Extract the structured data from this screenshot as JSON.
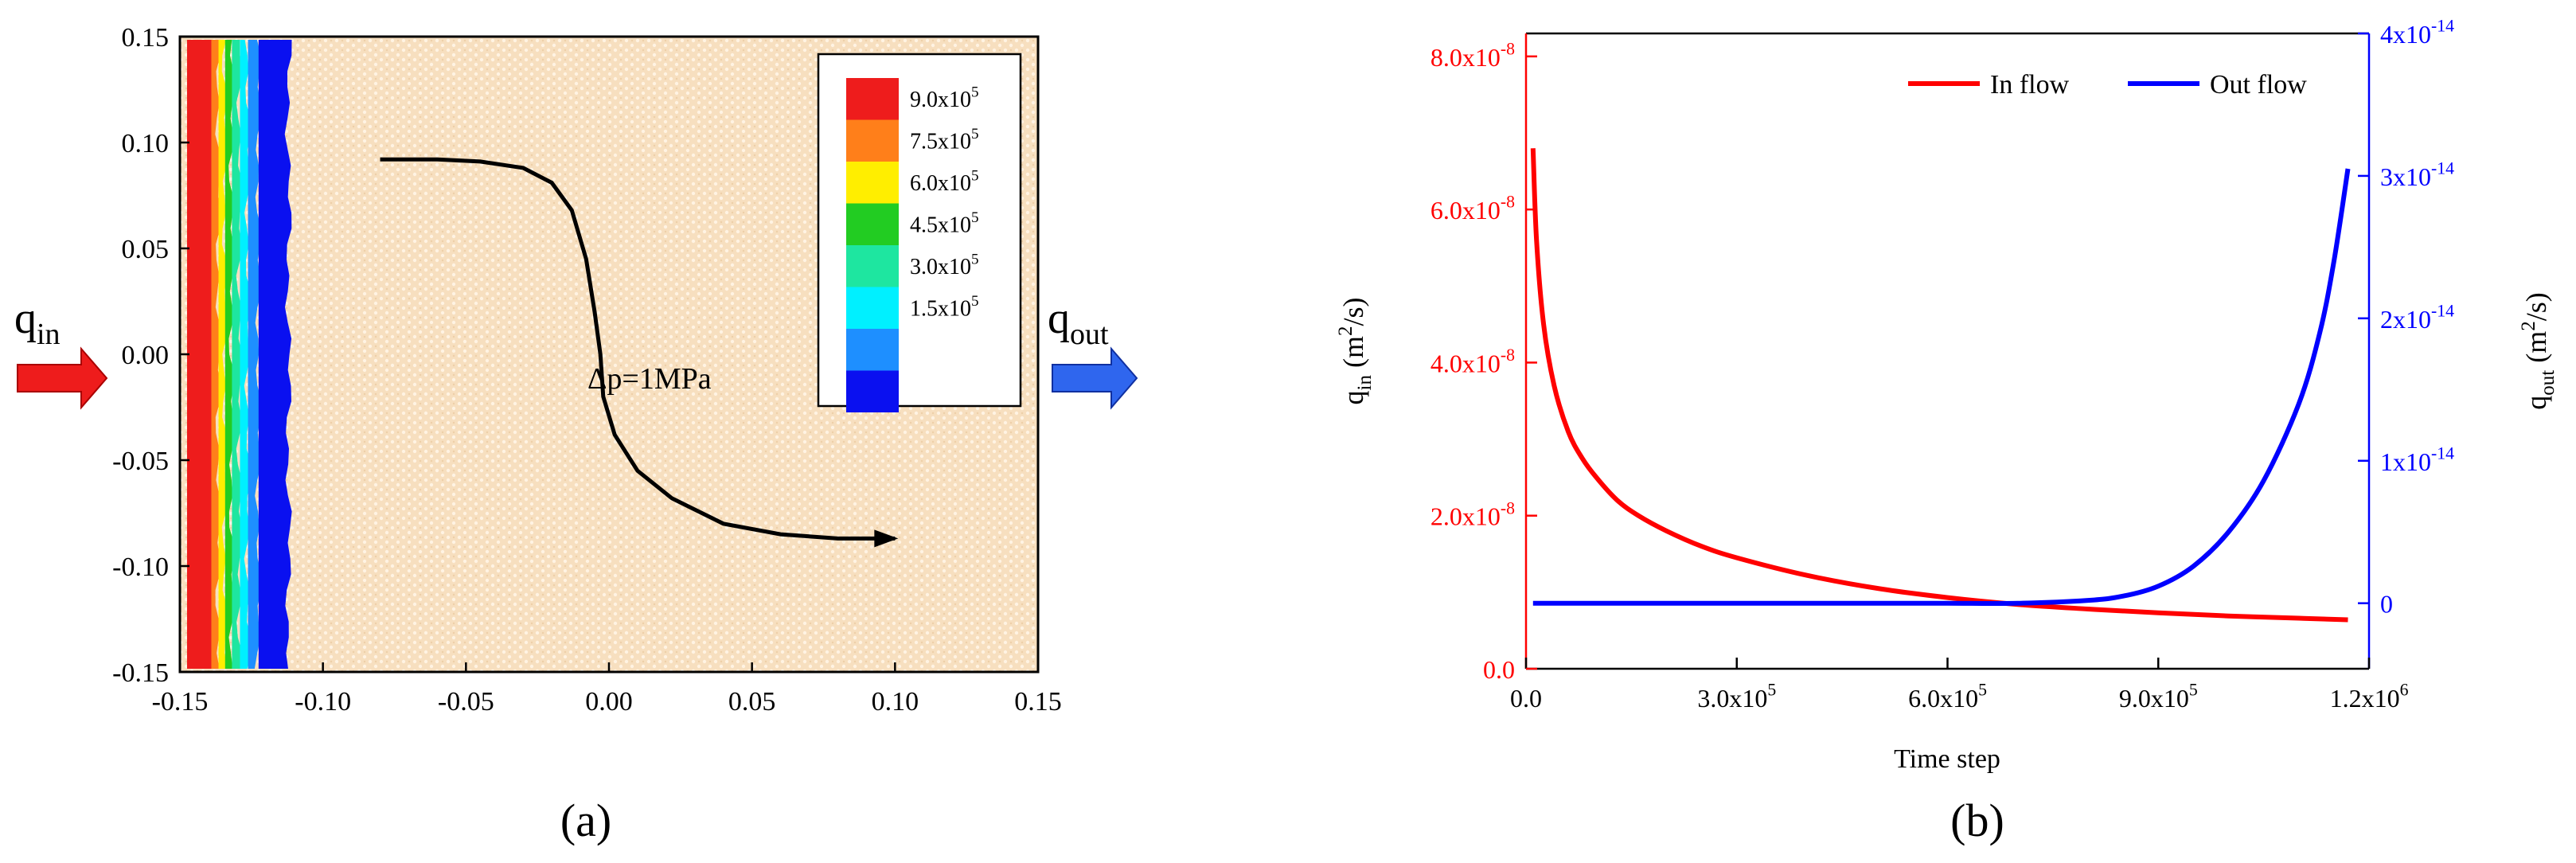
{
  "chart_data": [
    {
      "type": "contour",
      "panel_label": "(a)",
      "xlim": [
        -0.15,
        0.15
      ],
      "ylim": [
        -0.15,
        0.15
      ],
      "x_ticks": [
        "-0.15",
        "-0.10",
        "-0.05",
        "0.00",
        "0.05",
        "0.10",
        "0.15"
      ],
      "y_ticks": [
        "0.15",
        "0.10",
        "0.05",
        "0.00",
        "-0.05",
        "-0.10",
        "-0.15"
      ],
      "x_tick_values": [
        -0.15,
        -0.1,
        -0.05,
        0.0,
        0.05,
        0.1,
        0.15
      ],
      "y_tick_values": [
        0.15,
        0.1,
        0.05,
        0.0,
        -0.05,
        -0.1,
        -0.15
      ],
      "contour_bands": [
        {
          "x_from": -0.1475,
          "x_to": -0.139,
          "color": "#ee1c1c"
        },
        {
          "x_from": -0.139,
          "x_to": -0.1365,
          "color": "#ff7f1a"
        },
        {
          "x_from": -0.1365,
          "x_to": -0.1342,
          "color": "#ffee00"
        },
        {
          "x_from": -0.1342,
          "x_to": -0.1318,
          "color": "#22cc22"
        },
        {
          "x_from": -0.1318,
          "x_to": -0.129,
          "color": "#1ee6a0"
        },
        {
          "x_from": -0.129,
          "x_to": -0.1262,
          "color": "#00f0ff"
        },
        {
          "x_from": -0.1262,
          "x_to": -0.1225,
          "color": "#1e8fff"
        },
        {
          "x_from": -0.1225,
          "x_to": -0.112,
          "color": "#0a10f0"
        }
      ],
      "legend": [
        {
          "mantissa": "9.0x10",
          "exp": "5",
          "color": "#ee1c1c"
        },
        {
          "mantissa": "7.5x10",
          "exp": "5",
          "color": "#ff7f1a"
        },
        {
          "mantissa": "6.0x10",
          "exp": "5",
          "color": "#ffee00"
        },
        {
          "mantissa": "4.5x10",
          "exp": "5",
          "color": "#22cc22"
        },
        {
          "mantissa": "3.0x10",
          "exp": "5",
          "color": "#1ee6a0"
        },
        {
          "mantissa": "1.5x10",
          "exp": "5",
          "color": "#00f0ff"
        },
        {
          "mantissa": "",
          "exp": "",
          "color": "#1e8fff"
        },
        {
          "mantissa": "",
          "exp": "",
          "color": "#0a10f0"
        }
      ],
      "annotation": "Δp=1MPa",
      "arrow_path": [
        [
          -0.08,
          0.092
        ],
        [
          -0.06,
          0.092
        ],
        [
          -0.045,
          0.091
        ],
        [
          -0.03,
          0.088
        ],
        [
          -0.02,
          0.081
        ],
        [
          -0.013,
          0.068
        ],
        [
          -0.008,
          0.045
        ],
        [
          -0.005,
          0.02
        ],
        [
          -0.003,
          0.0
        ],
        [
          -0.002,
          -0.02
        ],
        [
          0.002,
          -0.038
        ],
        [
          0.01,
          -0.055
        ],
        [
          0.022,
          -0.068
        ],
        [
          0.04,
          -0.08
        ],
        [
          0.06,
          -0.085
        ],
        [
          0.08,
          -0.087
        ],
        [
          0.1,
          -0.087
        ]
      ],
      "inlet_label": {
        "main": "q",
        "sub": "in"
      },
      "outlet_label": {
        "main": "q",
        "sub": "out"
      },
      "colors": {
        "background": "#f7dfbf",
        "grain": "#fff3e3",
        "arrow_in": "#ee1c1c",
        "arrow_out": "#2f66ee",
        "curve": "#000000"
      }
    },
    {
      "type": "line",
      "panel_label": "(b)",
      "xlabel": "Time step",
      "x_ticks": [
        {
          "value": 0,
          "mantissa": "0.0",
          "exp": ""
        },
        {
          "value": 300000,
          "mantissa": "3.0x10",
          "exp": "5"
        },
        {
          "value": 600000,
          "mantissa": "6.0x10",
          "exp": "5"
        },
        {
          "value": 900000,
          "mantissa": "9.0x10",
          "exp": "5"
        },
        {
          "value": 1200000,
          "mantissa": "1.2x10",
          "exp": "6"
        }
      ],
      "xlim": [
        0,
        1200000
      ],
      "y_left": {
        "label_main": "q",
        "label_sub": "in",
        "label_unit": " (m",
        "label_sup": "2",
        "label_tail": "/s)",
        "color": "#ff0000",
        "lim": [
          0,
          8.3e-08
        ],
        "ticks": [
          {
            "value": 0,
            "mantissa": "0.0",
            "exp": ""
          },
          {
            "value": 2e-08,
            "mantissa": "2.0x10",
            "exp": "-8"
          },
          {
            "value": 4e-08,
            "mantissa": "4.0x10",
            "exp": "-8"
          },
          {
            "value": 6e-08,
            "mantissa": "6.0x10",
            "exp": "-8"
          },
          {
            "value": 8e-08,
            "mantissa": "8.0x10",
            "exp": "-8"
          }
        ]
      },
      "y_right": {
        "label_main": "q",
        "label_sub": "out",
        "label_unit": " (m",
        "label_sup": "2",
        "label_tail": "/s)",
        "color": "#0000ff",
        "lim": [
          -4.6e-15,
          4e-14
        ],
        "ticks": [
          {
            "value": 0,
            "mantissa": "0",
            "exp": ""
          },
          {
            "value": 1e-14,
            "mantissa": "1x10",
            "exp": "-14"
          },
          {
            "value": 2e-14,
            "mantissa": "2x10",
            "exp": "-14"
          },
          {
            "value": 3e-14,
            "mantissa": "3x10",
            "exp": "-14"
          },
          {
            "value": 4e-14,
            "mantissa": "4x10",
            "exp": "-14"
          }
        ]
      },
      "series": [
        {
          "name": "In flow",
          "axis": "left",
          "color": "#ff0000",
          "x": [
            10000,
            15000,
            25000,
            40000,
            60000,
            80000,
            100000,
            130000,
            160000,
            200000,
            250000,
            300000,
            400000,
            500000,
            600000,
            700000,
            800000,
            900000,
            1000000,
            1100000,
            1170000
          ],
          "y": [
            6.8e-08,
            5.6e-08,
            4.5e-08,
            3.7e-08,
            3.1e-08,
            2.75e-08,
            2.5e-08,
            2.2e-08,
            2e-08,
            1.8e-08,
            1.6e-08,
            1.45e-08,
            1.22e-08,
            1.05e-08,
            9.3e-09,
            8.4e-09,
            7.8e-09,
            7.3e-09,
            6.9e-09,
            6.6e-09,
            6.4e-09
          ]
        },
        {
          "name": "Out flow",
          "axis": "right",
          "color": "#0000ff",
          "x": [
            10000,
            100000,
            300000,
            500000,
            600000,
            700000,
            800000,
            850000,
            900000,
            950000,
            1000000,
            1050000,
            1100000,
            1130000,
            1150000,
            1170000
          ],
          "y": [
            0,
            0,
            0,
            0,
            0,
            0,
            2e-16,
            5e-16,
            1.2e-15,
            2.6e-15,
            5e-15,
            8.6e-15,
            1.4e-14,
            1.9e-14,
            2.4e-14,
            3.05e-14
          ]
        }
      ],
      "legend_placement": "top-right"
    }
  ]
}
